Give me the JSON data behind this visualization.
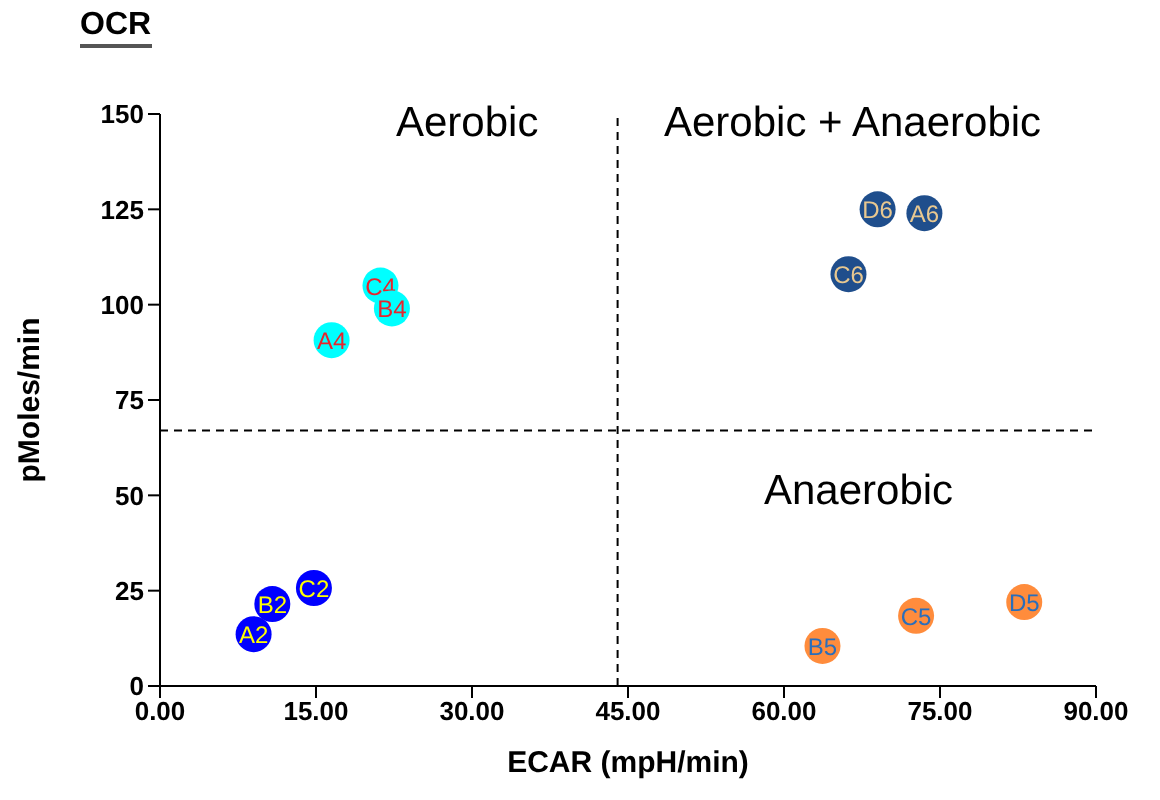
{
  "chart_data": {
    "type": "scatter",
    "title": "OCR",
    "xlabel": "ECAR (mpH/min)",
    "ylabel": "pMoles/min",
    "annotations": [
      "Aerobic",
      "Aerobic + Anaerobic",
      "Anaerobic"
    ],
    "series": [
      {
        "color": "#0000ff",
        "x": [
          9.0,
          10.8,
          14.8
        ],
        "values": [
          13.6,
          21.5,
          25.7
        ],
        "value_labels": [
          "A2",
          "B2",
          "C2"
        ]
      },
      {
        "color": "#00ffff",
        "x": [
          16.5,
          21.2,
          22.3
        ],
        "values": [
          90.7,
          105,
          99
        ],
        "value_labels": [
          "A4",
          "C4",
          "B4"
        ]
      },
      {
        "color": "#ff8c3c",
        "x": [
          63.7,
          72.7,
          83.1
        ],
        "values": [
          10.5,
          18.4,
          22
        ],
        "value_labels": [
          "B5",
          "C5",
          "D5"
        ]
      },
      {
        "color": "#1f4e8c",
        "x": [
          66.2,
          69.0,
          73.5
        ],
        "values": [
          108,
          125,
          124
        ],
        "value_labels": [
          "C6",
          "D6",
          "A6"
        ]
      }
    ],
    "xlim": [
      0,
      90
    ],
    "xticks": [
      {
        "value": 0,
        "label": "0.00"
      },
      {
        "value": 15,
        "label": "15.00"
      },
      {
        "value": 30,
        "label": "30.00"
      },
      {
        "value": 45,
        "label": "45.00"
      },
      {
        "value": 60,
        "label": "60.00"
      },
      {
        "value": 75,
        "label": "75.00"
      },
      {
        "value": 90,
        "label": "90.00"
      }
    ],
    "ylim": [
      0,
      150
    ],
    "yticks": [
      0,
      25,
      50,
      75,
      100,
      125,
      150
    ],
    "ref_lines": [
      {
        "axis": "x",
        "value": 44,
        "line_style": "dashed"
      },
      {
        "axis": "y",
        "value": 67,
        "line_style": "dashed"
      }
    ],
    "grid": false,
    "legend": false,
    "marker": "circle"
  }
}
